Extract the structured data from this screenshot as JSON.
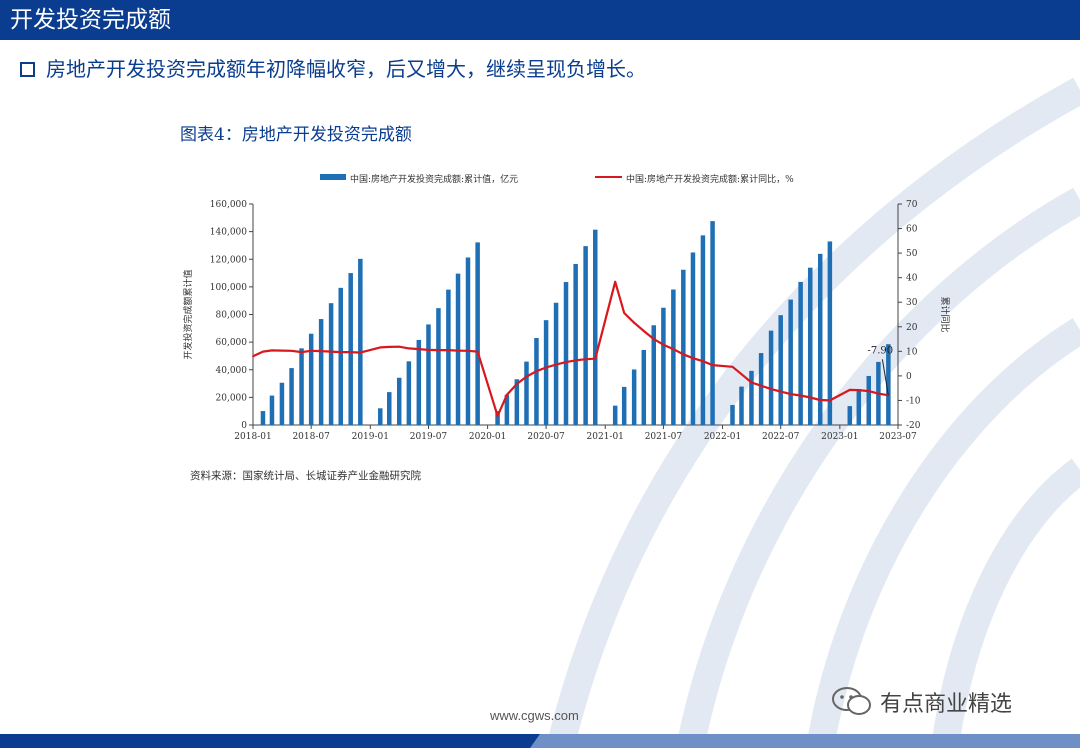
{
  "header": {
    "title": "开发投资完成额"
  },
  "bullet": {
    "text": "房地产开发投资完成额年初降幅收窄，后又增大，继续呈现负增长。"
  },
  "figure": {
    "title": "图表4：房地产开发投资完成额",
    "source": "资料来源：国家统计局、长城证券产业金融研究院"
  },
  "footer": {
    "url": "www.cgws.com",
    "watermark": "有点商业精选"
  },
  "colors": {
    "bar": "#1f6fb5",
    "line": "#d7181e",
    "brand": "#0a3d8f"
  },
  "chart_data": {
    "type": "bar+line",
    "legend": [
      {
        "name": "中国:房地产开发投资完成额:累计值，亿元",
        "kind": "bar"
      },
      {
        "name": "中国:房地产开发投资完成额:累计同比，%",
        "kind": "line"
      }
    ],
    "legend_position": "top",
    "ylabel_left": "开发投资完成额累计值",
    "ylabel_right": "累计同比",
    "x_ticks": [
      "2018-01",
      "2018-07",
      "2019-01",
      "2019-07",
      "2020-01",
      "2020-07",
      "2021-01",
      "2021-07",
      "2022-01",
      "2022-07",
      "2023-01",
      "2023-07"
    ],
    "y_left_ticks": [
      "0",
      "20,000",
      "40,000",
      "60,000",
      "80,000",
      "100,000",
      "120,000",
      "140,000",
      "160,000"
    ],
    "y_right_ticks": [
      "-20",
      "-10",
      "0",
      "10",
      "20",
      "30",
      "40",
      "50",
      "60",
      "70"
    ],
    "ylim_left": [
      0,
      160000
    ],
    "ylim_right": [
      -20,
      70
    ],
    "grid": false,
    "annotation": "-7.90",
    "bars": [
      {
        "x": "2018-02",
        "v": 10100
      },
      {
        "x": "2018-03",
        "v": 21300
      },
      {
        "x": "2018-04",
        "v": 30600
      },
      {
        "x": "2018-05",
        "v": 41200
      },
      {
        "x": "2018-06",
        "v": 55500
      },
      {
        "x": "2018-07",
        "v": 66100
      },
      {
        "x": "2018-08",
        "v": 76700
      },
      {
        "x": "2018-09",
        "v": 88200
      },
      {
        "x": "2018-10",
        "v": 99300
      },
      {
        "x": "2018-11",
        "v": 110000
      },
      {
        "x": "2018-12",
        "v": 120300
      },
      {
        "x": "2019-02",
        "v": 12100
      },
      {
        "x": "2019-03",
        "v": 23800
      },
      {
        "x": "2019-04",
        "v": 34200
      },
      {
        "x": "2019-05",
        "v": 46100
      },
      {
        "x": "2019-06",
        "v": 61600
      },
      {
        "x": "2019-07",
        "v": 72800
      },
      {
        "x": "2019-08",
        "v": 84600
      },
      {
        "x": "2019-09",
        "v": 98000
      },
      {
        "x": "2019-10",
        "v": 109600
      },
      {
        "x": "2019-11",
        "v": 121300
      },
      {
        "x": "2019-12",
        "v": 132200
      },
      {
        "x": "2020-02",
        "v": 10100
      },
      {
        "x": "2020-03",
        "v": 21900
      },
      {
        "x": "2020-04",
        "v": 33100
      },
      {
        "x": "2020-05",
        "v": 45900
      },
      {
        "x": "2020-06",
        "v": 63000
      },
      {
        "x": "2020-07",
        "v": 75900
      },
      {
        "x": "2020-08",
        "v": 88500
      },
      {
        "x": "2020-09",
        "v": 103500
      },
      {
        "x": "2020-10",
        "v": 116600
      },
      {
        "x": "2020-11",
        "v": 129500
      },
      {
        "x": "2020-12",
        "v": 141400
      },
      {
        "x": "2021-02",
        "v": 14000
      },
      {
        "x": "2021-03",
        "v": 27600
      },
      {
        "x": "2021-04",
        "v": 40200
      },
      {
        "x": "2021-05",
        "v": 54300
      },
      {
        "x": "2021-06",
        "v": 72200
      },
      {
        "x": "2021-07",
        "v": 84900
      },
      {
        "x": "2021-08",
        "v": 98100
      },
      {
        "x": "2021-09",
        "v": 112400
      },
      {
        "x": "2021-10",
        "v": 124900
      },
      {
        "x": "2021-11",
        "v": 137300
      },
      {
        "x": "2021-12",
        "v": 147600
      },
      {
        "x": "2022-02",
        "v": 14500
      },
      {
        "x": "2022-03",
        "v": 27800
      },
      {
        "x": "2022-04",
        "v": 39200
      },
      {
        "x": "2022-05",
        "v": 52100
      },
      {
        "x": "2022-06",
        "v": 68300
      },
      {
        "x": "2022-07",
        "v": 79500
      },
      {
        "x": "2022-08",
        "v": 90800
      },
      {
        "x": "2022-09",
        "v": 103600
      },
      {
        "x": "2022-10",
        "v": 113900
      },
      {
        "x": "2022-11",
        "v": 123900
      },
      {
        "x": "2022-12",
        "v": 132900
      },
      {
        "x": "2023-02",
        "v": 13700
      },
      {
        "x": "2023-03",
        "v": 25900
      },
      {
        "x": "2023-04",
        "v": 35500
      },
      {
        "x": "2023-05",
        "v": 45700
      },
      {
        "x": "2023-06",
        "v": 58500
      }
    ],
    "line": [
      {
        "x": "2018-01",
        "v": 8.0
      },
      {
        "x": "2018-02",
        "v": 9.9
      },
      {
        "x": "2018-03",
        "v": 10.4
      },
      {
        "x": "2018-04",
        "v": 10.3
      },
      {
        "x": "2018-05",
        "v": 10.2
      },
      {
        "x": "2018-06",
        "v": 9.7
      },
      {
        "x": "2018-07",
        "v": 10.2
      },
      {
        "x": "2018-08",
        "v": 10.1
      },
      {
        "x": "2018-09",
        "v": 9.9
      },
      {
        "x": "2018-10",
        "v": 9.7
      },
      {
        "x": "2018-11",
        "v": 9.7
      },
      {
        "x": "2018-12",
        "v": 9.5
      },
      {
        "x": "2019-02",
        "v": 11.6
      },
      {
        "x": "2019-03",
        "v": 11.8
      },
      {
        "x": "2019-04",
        "v": 11.9
      },
      {
        "x": "2019-05",
        "v": 11.2
      },
      {
        "x": "2019-06",
        "v": 10.9
      },
      {
        "x": "2019-07",
        "v": 10.6
      },
      {
        "x": "2019-08",
        "v": 10.5
      },
      {
        "x": "2019-09",
        "v": 10.5
      },
      {
        "x": "2019-10",
        "v": 10.3
      },
      {
        "x": "2019-11",
        "v": 10.2
      },
      {
        "x": "2019-12",
        "v": 9.9
      },
      {
        "x": "2020-02",
        "v": -16.3
      },
      {
        "x": "2020-03",
        "v": -7.7
      },
      {
        "x": "2020-04",
        "v": -3.3
      },
      {
        "x": "2020-05",
        "v": -0.3
      },
      {
        "x": "2020-06",
        "v": 1.9
      },
      {
        "x": "2020-07",
        "v": 3.4
      },
      {
        "x": "2020-08",
        "v": 4.6
      },
      {
        "x": "2020-09",
        "v": 5.6
      },
      {
        "x": "2020-10",
        "v": 6.3
      },
      {
        "x": "2020-11",
        "v": 6.8
      },
      {
        "x": "2020-12",
        "v": 7.0
      },
      {
        "x": "2021-02",
        "v": 38.3
      },
      {
        "x": "2021-03",
        "v": 25.6
      },
      {
        "x": "2021-04",
        "v": 21.6
      },
      {
        "x": "2021-05",
        "v": 18.3
      },
      {
        "x": "2021-06",
        "v": 15.0
      },
      {
        "x": "2021-07",
        "v": 12.7
      },
      {
        "x": "2021-08",
        "v": 10.9
      },
      {
        "x": "2021-09",
        "v": 8.8
      },
      {
        "x": "2021-10",
        "v": 7.2
      },
      {
        "x": "2021-11",
        "v": 6.0
      },
      {
        "x": "2021-12",
        "v": 4.4
      },
      {
        "x": "2022-02",
        "v": 3.7
      },
      {
        "x": "2022-03",
        "v": 0.7
      },
      {
        "x": "2022-04",
        "v": -2.7
      },
      {
        "x": "2022-05",
        "v": -4.0
      },
      {
        "x": "2022-06",
        "v": -5.4
      },
      {
        "x": "2022-07",
        "v": -6.4
      },
      {
        "x": "2022-08",
        "v": -7.4
      },
      {
        "x": "2022-09",
        "v": -8.0
      },
      {
        "x": "2022-10",
        "v": -8.8
      },
      {
        "x": "2022-11",
        "v": -9.8
      },
      {
        "x": "2022-12",
        "v": -10.0
      },
      {
        "x": "2023-02",
        "v": -5.7
      },
      {
        "x": "2023-03",
        "v": -5.8
      },
      {
        "x": "2023-04",
        "v": -6.2
      },
      {
        "x": "2023-05",
        "v": -7.2
      },
      {
        "x": "2023-06",
        "v": -7.9
      }
    ]
  }
}
